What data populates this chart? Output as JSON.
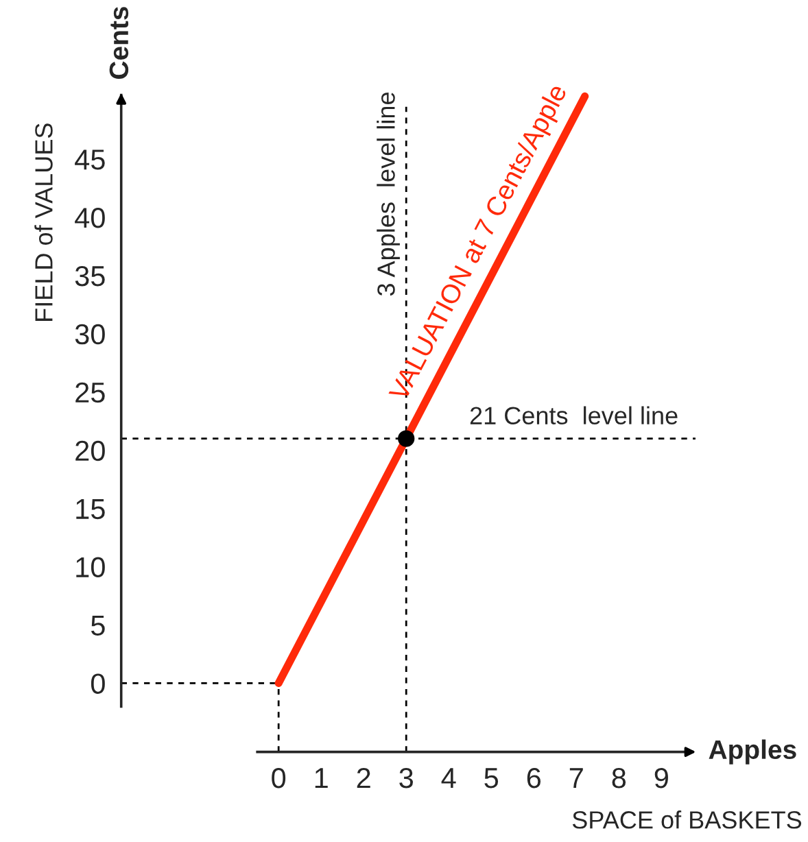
{
  "chart_data": {
    "type": "line",
    "xlabel": "SPACE of BASKETS",
    "ylabel": "FIELD of VALUES",
    "annotations": [
      "Cents",
      "Apples"
    ],
    "series": [
      {
        "name": "VALUATION at 7 Cents/Apple",
        "color": "#ff2a0a",
        "x": [
          0,
          7.2
        ],
        "values": [
          0,
          50.4
        ]
      },
      {
        "type": "scatter",
        "color": "#000000",
        "x": [
          3
        ],
        "values": [
          21
        ],
        "marker": "circle"
      }
    ],
    "ref_lines": [
      {
        "axis": "x",
        "value": 3,
        "label": "3 Apples  level line",
        "line_style": "dashed",
        "color": "#000000"
      },
      {
        "axis": "y",
        "value": 21,
        "label": "21 Cents  level line",
        "line_style": "dashed",
        "color": "#000000"
      },
      {
        "axis": "x",
        "value": 0,
        "line_style": "dashed",
        "color": "#000000"
      },
      {
        "axis": "y",
        "value": 0,
        "line_style": "dashed",
        "color": "#000000"
      }
    ],
    "xlim": [
      -3.7,
      9.9
    ],
    "ylim": [
      -5.9,
      51
    ],
    "xticks": [
      0,
      1,
      2,
      3,
      4,
      5,
      6,
      7,
      8,
      9
    ],
    "yticks": [
      0,
      5,
      10,
      15,
      20,
      25,
      30,
      35,
      40,
      45
    ],
    "grid": false,
    "legend": false,
    "marker": "none",
    "line_style": "solid"
  }
}
